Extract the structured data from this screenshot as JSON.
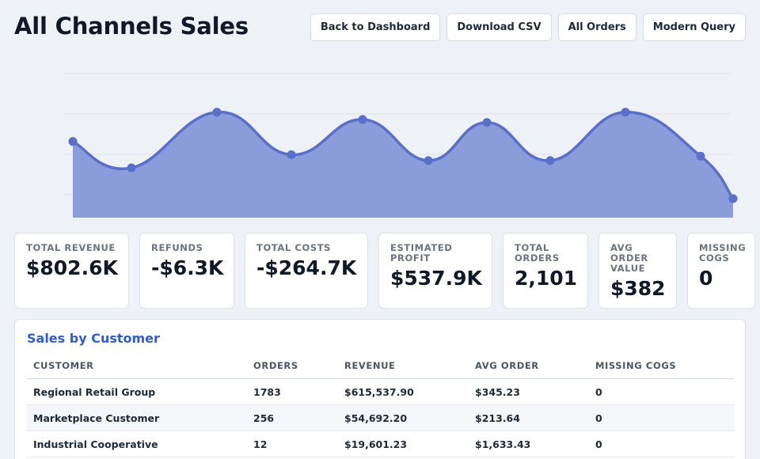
{
  "header": {
    "title": "All Channels Sales",
    "buttons": [
      "Back to Dashboard",
      "Download CSV",
      "All Orders",
      "Modern Query"
    ]
  },
  "colors": {
    "accent": "#2f5bd3",
    "chart_line": "#5a6fc7",
    "chart_fill": "#8a9cd9",
    "page_bg": "#eef1f6"
  },
  "chart_data": {
    "type": "area",
    "series": [
      {
        "values": [
          0.52,
          0.34,
          0.72,
          0.43,
          0.67,
          0.39,
          0.65,
          0.39,
          0.72,
          0.42,
          0.13
        ]
      }
    ],
    "ylim": [
      0,
      1
    ],
    "grid": true,
    "legend": "none",
    "xlabel": "",
    "ylabel": ""
  },
  "kpis": [
    {
      "label": "TOTAL REVENUE",
      "value": "$802.6K"
    },
    {
      "label": "REFUNDS",
      "value": "-$6.3K"
    },
    {
      "label": "TOTAL COSTS",
      "value": "-$264.7K"
    },
    {
      "label": "ESTIMATED PROFIT",
      "value": "$537.9K"
    },
    {
      "label": "TOTAL ORDERS",
      "value": "2,101"
    },
    {
      "label": "AVG ORDER VALUE",
      "value": "$382"
    },
    {
      "label": "MISSING COGS",
      "value": "0"
    }
  ],
  "customers": {
    "title": "Sales by Customer",
    "columns": [
      "CUSTOMER",
      "ORDERS",
      "REVENUE",
      "AVG ORDER",
      "MISSING COGS"
    ],
    "rows": [
      [
        "Regional Retail Group",
        "1783",
        "$615,537.90",
        "$345.23",
        "0"
      ],
      [
        "Marketplace Customer",
        "256",
        "$54,692.20",
        "$213.64",
        "0"
      ],
      [
        "Industrial Cooperative",
        "12",
        "$19,601.23",
        "$1,633.43",
        "0"
      ]
    ]
  }
}
